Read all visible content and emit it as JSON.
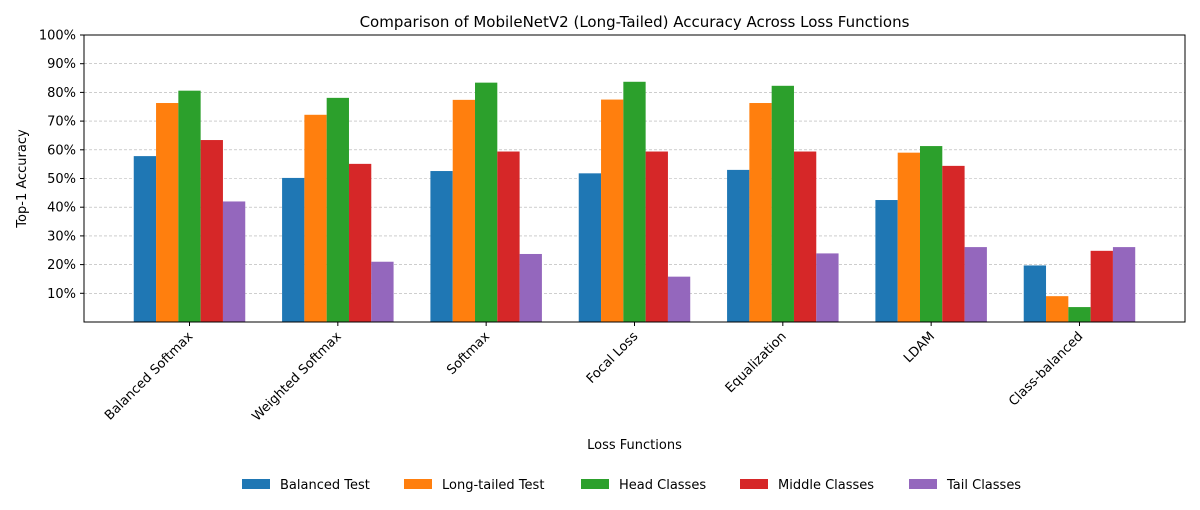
{
  "chart_data": {
    "type": "bar",
    "title": "Comparison of MobileNetV2 (Long-Tailed) Accuracy Across Loss Functions",
    "xlabel": "Loss Functions",
    "ylabel": "Top-1 Accuracy",
    "ylim": [
      0,
      100
    ],
    "yticks": [
      10,
      20,
      30,
      40,
      50,
      60,
      70,
      80,
      90,
      100
    ],
    "ytick_format": "%",
    "grid": "y, dashed",
    "legend_position": "bottom-center",
    "categories": [
      "Balanced Softmax",
      "Weighted Softmax",
      "Softmax",
      "Focal Loss",
      "Equalization",
      "LDAM",
      "Class-balanced"
    ],
    "series": [
      {
        "name": "Balanced Test",
        "color": "#1f77b4",
        "values": [
          57.8,
          50.2,
          52.6,
          51.8,
          53.0,
          42.5,
          19.7
        ]
      },
      {
        "name": "Long-tailed Test",
        "color": "#ff7f0e",
        "values": [
          76.3,
          72.2,
          77.4,
          77.5,
          76.3,
          59.0,
          9.0
        ]
      },
      {
        "name": "Head Classes",
        "color": "#2ca02c",
        "values": [
          80.6,
          78.1,
          83.4,
          83.7,
          82.3,
          61.3,
          5.2
        ]
      },
      {
        "name": "Middle Classes",
        "color": "#d62728",
        "values": [
          63.4,
          55.1,
          59.4,
          59.4,
          59.4,
          54.4,
          24.8
        ]
      },
      {
        "name": "Tail Classes",
        "color": "#9467bd",
        "values": [
          42.0,
          21.0,
          23.7,
          15.8,
          23.9,
          26.1,
          26.1
        ]
      }
    ]
  }
}
